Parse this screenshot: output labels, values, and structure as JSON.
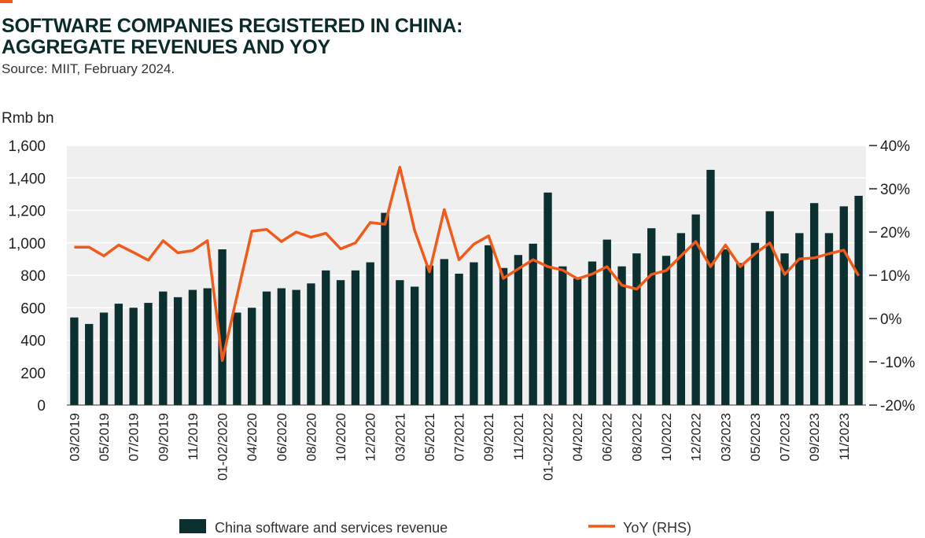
{
  "header": {
    "title_line1": "SOFTWARE COMPANIES REGISTERED IN CHINA:",
    "title_line2": "AGGREGATE REVENUES AND YOY",
    "source": "Source: MIIT, February 2024."
  },
  "colors": {
    "bar": "#0c2f30",
    "line": "#f05a1a",
    "grid": "#ffffff",
    "plot_bg": "#efefef",
    "accent": "#f05a1a"
  },
  "chart_data": {
    "type": "bar",
    "ylabel": "Rmb bn",
    "ylim": [
      0,
      1600
    ],
    "y2lim": [
      -20,
      40
    ],
    "y_ticks": [
      0,
      200,
      400,
      600,
      800,
      1000,
      1200,
      1400,
      1600
    ],
    "y_tick_labels": [
      "0",
      "200",
      "400",
      "600",
      "800",
      "1,000",
      "1,200",
      "1,400",
      "1,600"
    ],
    "y2_ticks": [
      -20,
      -10,
      0,
      10,
      20,
      30,
      40
    ],
    "y2_tick_labels": [
      "-20%",
      "-10%",
      "0%",
      "10%",
      "20%",
      "30%",
      "40%"
    ],
    "x_tick_labels": [
      "03/2019",
      "05/2019",
      "07/2019",
      "09/2019",
      "11/2019",
      "01-02/2020",
      "04/2020",
      "06/2020",
      "08/2020",
      "10/2020",
      "12/2020",
      "03/2021",
      "05/2021",
      "07/2021",
      "09/2021",
      "11/2021",
      "01-02/2022",
      "04/2022",
      "06/2022",
      "08/2022",
      "10/2022",
      "12/2022",
      "03/2023",
      "05/2023",
      "07/2023",
      "09/2023",
      "11/2023"
    ],
    "x_tick_index": [
      0,
      2,
      4,
      6,
      8,
      10,
      12,
      14,
      16,
      18,
      20,
      22,
      24,
      26,
      28,
      30,
      32,
      34,
      36,
      38,
      40,
      42,
      44,
      46,
      48,
      50,
      52
    ],
    "grid": true,
    "legend_position": "bottom",
    "series": [
      {
        "name": "China software and services revenue",
        "type": "bar",
        "axis": "left",
        "values": [
          540,
          500,
          570,
          625,
          600,
          630,
          700,
          665,
          710,
          720,
          960,
          570,
          600,
          700,
          720,
          710,
          750,
          830,
          770,
          830,
          880,
          1185,
          770,
          730,
          860,
          900,
          810,
          880,
          985,
          845,
          925,
          995,
          1310,
          855,
          780,
          885,
          1020,
          855,
          935,
          1090,
          920,
          1060,
          1175,
          1450,
          960,
          875,
          1000,
          1195,
          935,
          1060,
          1245,
          1060,
          1225,
          1290
        ]
      },
      {
        "name": "YoY (RHS)",
        "type": "line",
        "axis": "right",
        "values": [
          16.5,
          16.5,
          14.5,
          17.0,
          15.3,
          13.5,
          18.0,
          15.2,
          15.7,
          18.0,
          -9.7,
          5.3,
          20.2,
          20.6,
          17.8,
          20.0,
          18.8,
          19.7,
          16.1,
          17.5,
          22.2,
          21.8,
          35.0,
          20.4,
          10.8,
          25.2,
          13.6,
          17.2,
          19.1,
          9.3,
          11.5,
          13.6,
          12.0,
          11.2,
          9.2,
          10.3,
          12.0,
          7.7,
          6.8,
          10.2,
          11.1,
          14.5,
          17.8,
          12.0,
          17.0,
          12.0,
          15.0,
          17.5,
          10.2,
          13.8,
          14.0,
          15.0,
          15.8,
          9.9
        ]
      }
    ]
  }
}
